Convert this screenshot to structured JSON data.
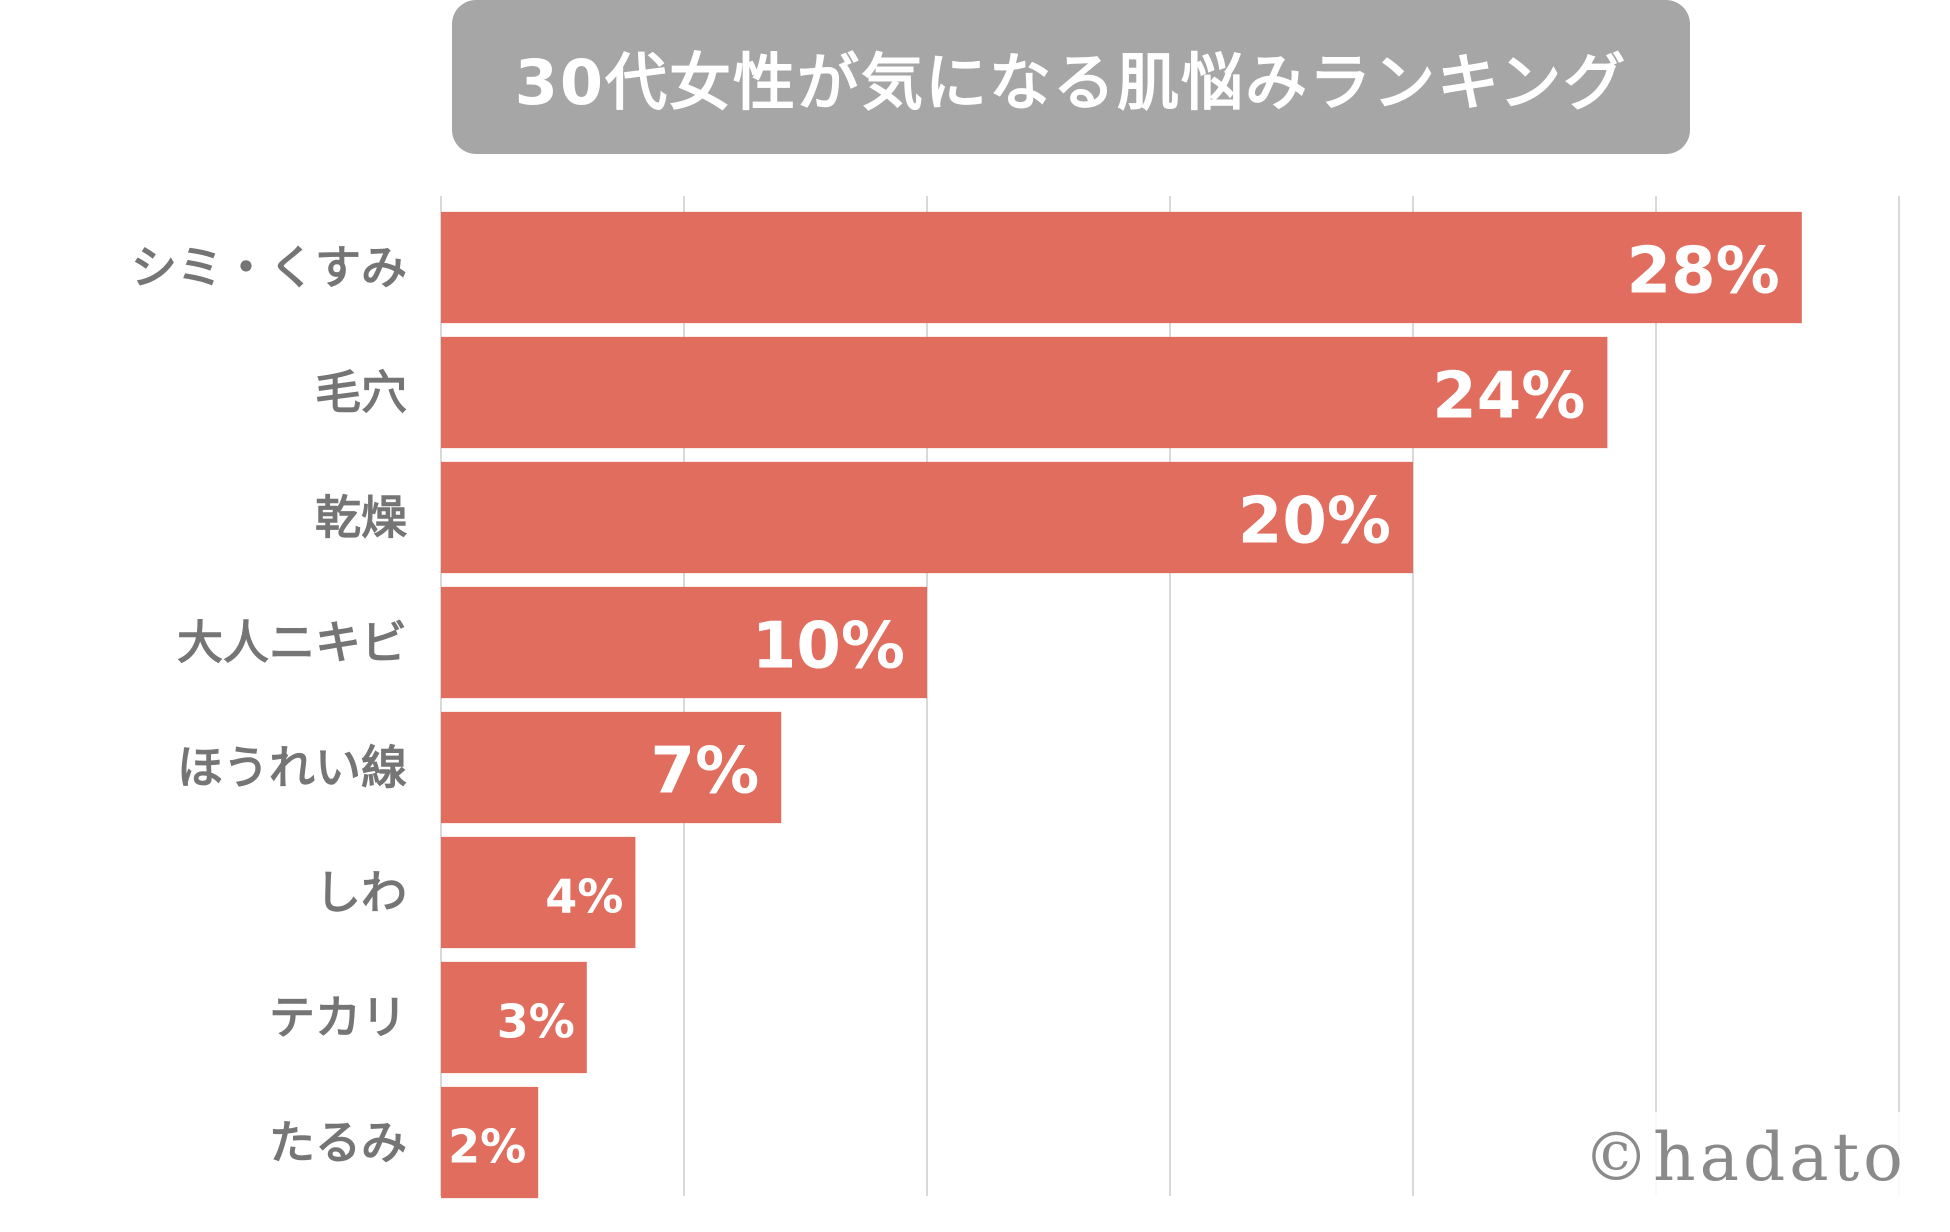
{
  "title": "30代女性が気になる肌悩みランキング",
  "watermark": "©hadato",
  "colors": {
    "bar": "#e06d5e",
    "title_bg": "#a6a6a6",
    "grid": "#d9d9d9",
    "label": "#757575"
  },
  "chart_data": {
    "type": "bar",
    "orientation": "horizontal",
    "categories": [
      "シミ・くすみ",
      "毛穴",
      "乾燥",
      "大人ニキビ",
      "ほうれい線",
      "しわ",
      "テカリ",
      "たるみ"
    ],
    "values": [
      28,
      24,
      20,
      10,
      7,
      4,
      3,
      2
    ],
    "value_labels": [
      "28%",
      "24%",
      "20%",
      "10%",
      "7%",
      "4%",
      "3%",
      "2%"
    ],
    "xlim": [
      0,
      30
    ],
    "grid": true,
    "legend": "none"
  }
}
